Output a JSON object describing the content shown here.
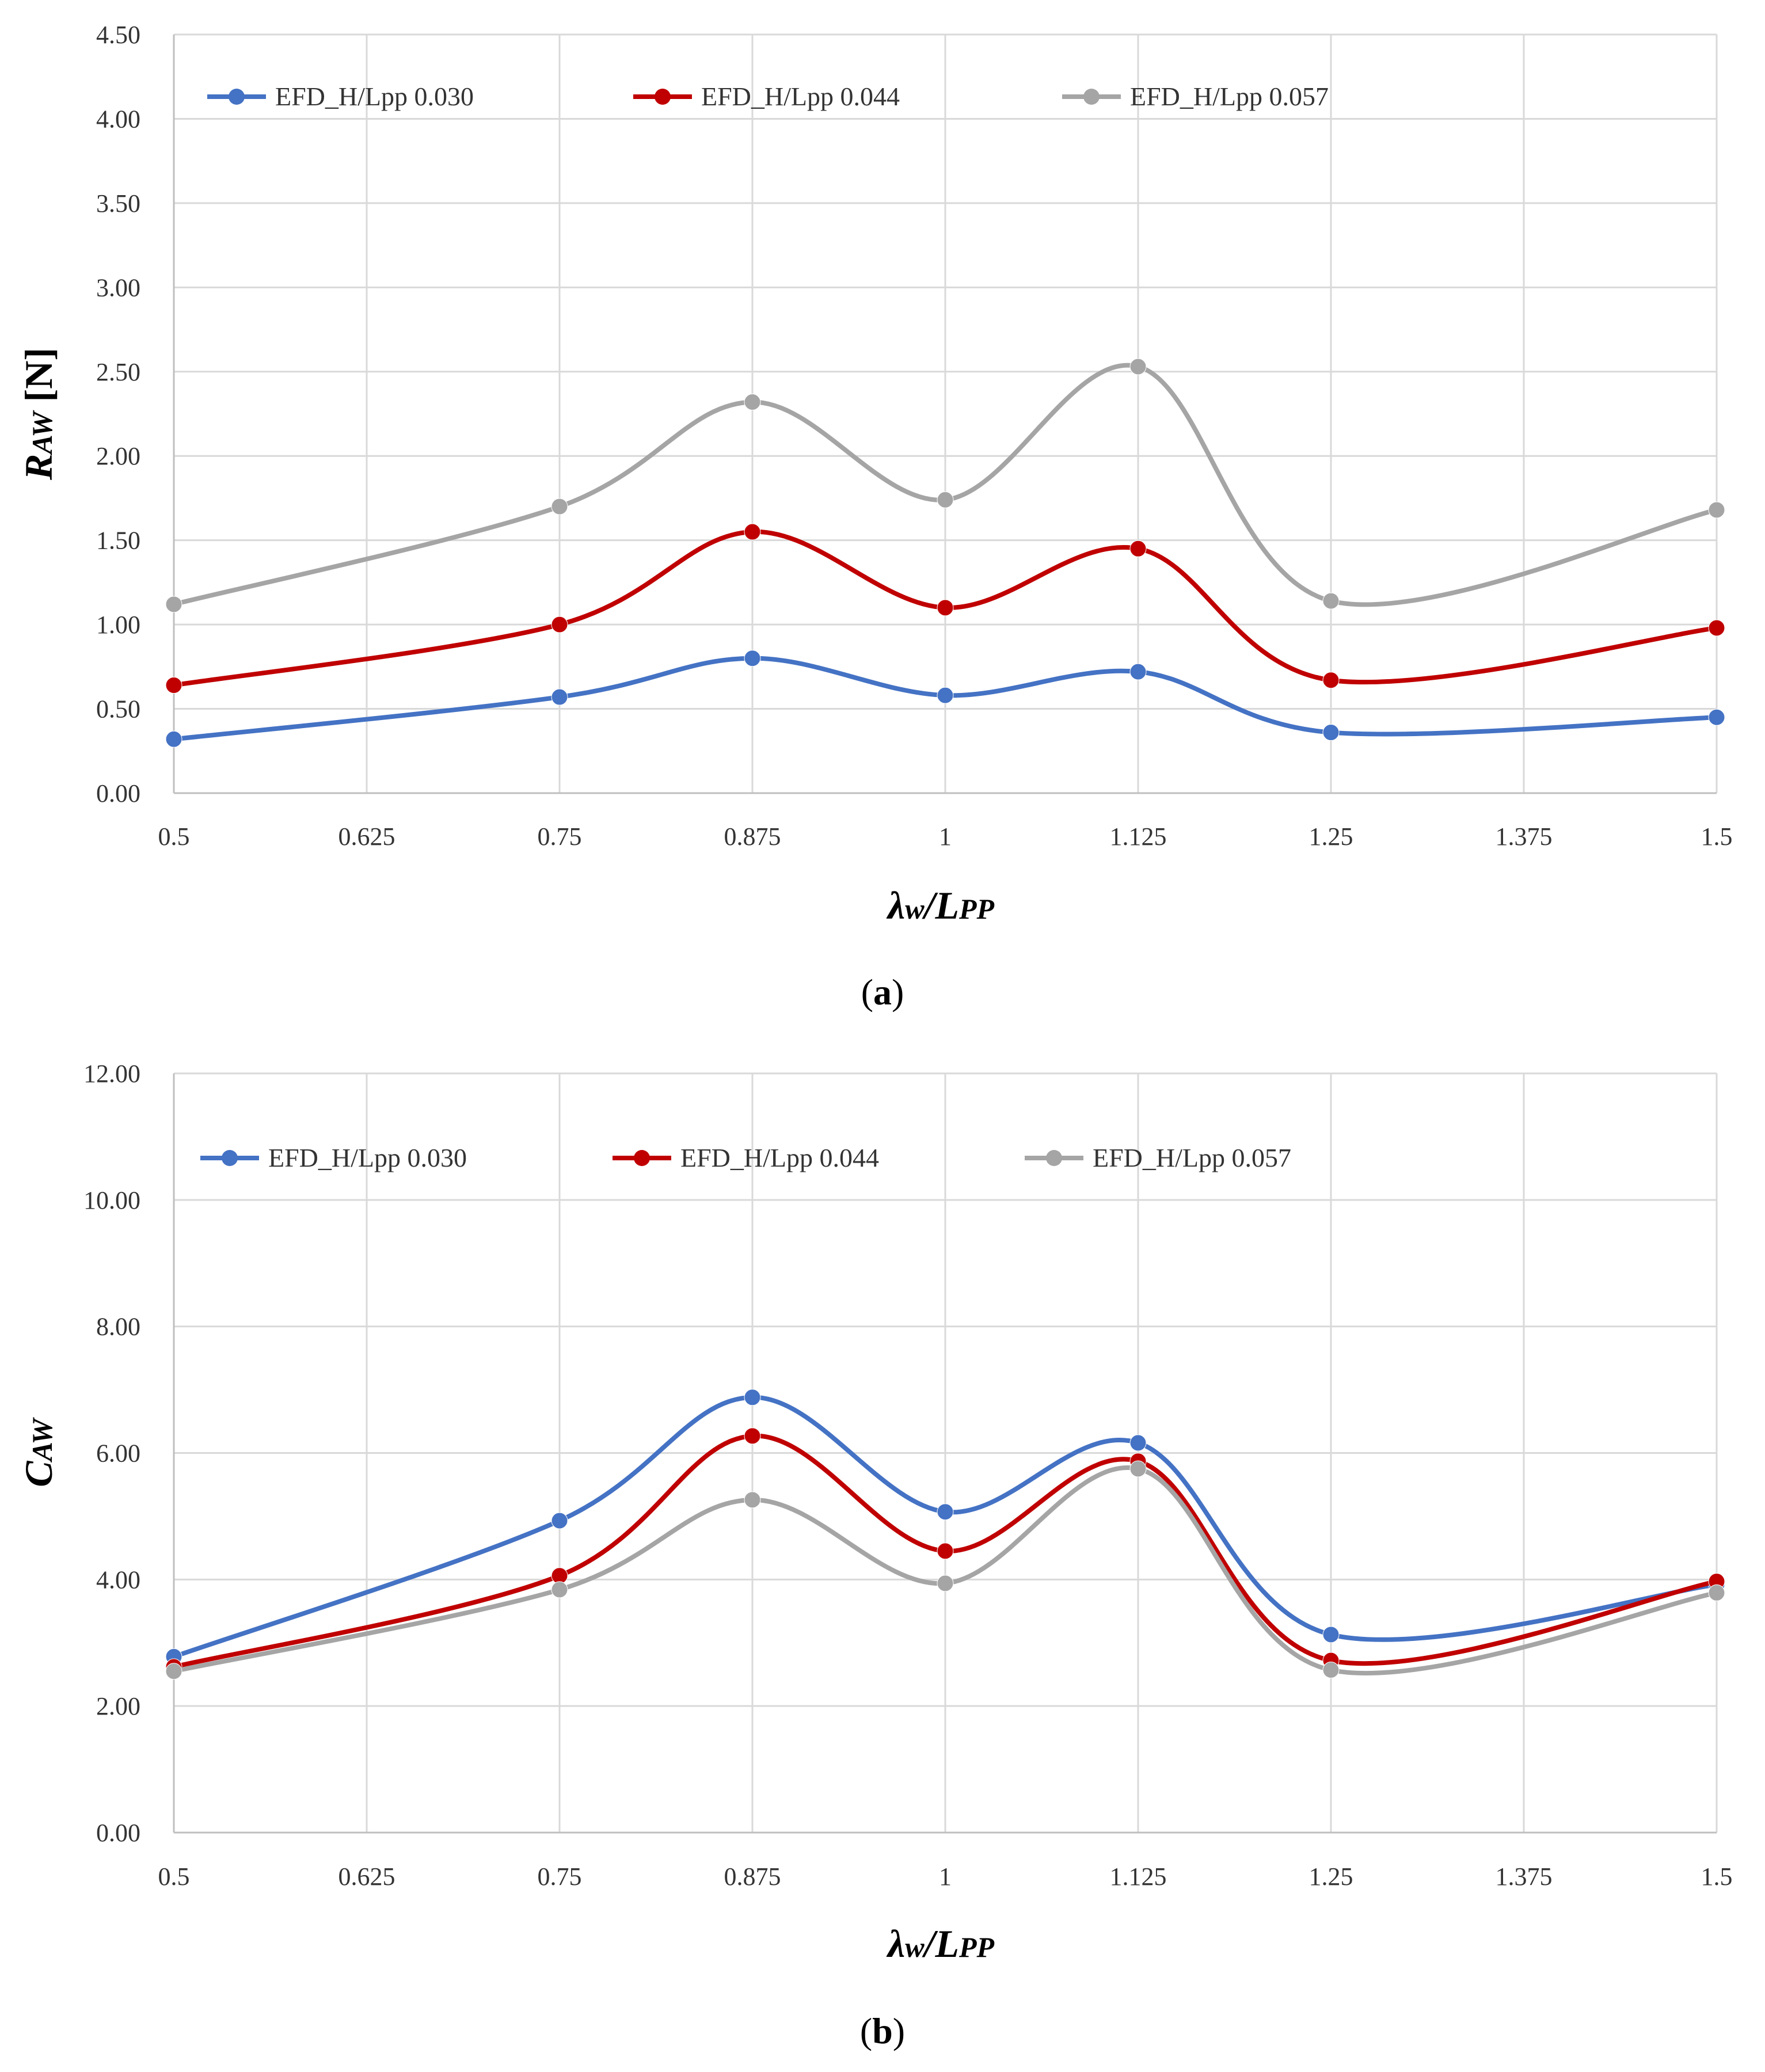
{
  "chart_data": [
    {
      "type": "line",
      "panel_label": "a",
      "ylabel_main": "R",
      "ylabel_sub": "AW",
      "ylabel_suffix": " [N]",
      "xlabel_main": "λ",
      "xlabel_sub": "w",
      "xlabel_mid": "/L",
      "xlabel_sub2": "PP",
      "xlim": [
        0.5,
        1.5
      ],
      "ylim": [
        0,
        4.5
      ],
      "x_ticks": [
        "0.5",
        "0.625",
        "0.75",
        "0.875",
        "1",
        "1.125",
        "1.25",
        "1.375",
        "1.5"
      ],
      "y_ticks": [
        "0.00",
        "0.50",
        "1.00",
        "1.50",
        "2.00",
        "2.50",
        "3.00",
        "3.50",
        "4.00",
        "4.50"
      ],
      "x": [
        0.5,
        0.75,
        0.875,
        1.0,
        1.125,
        1.25,
        1.5
      ],
      "grid": true,
      "smooth": true,
      "legend": "top",
      "series": [
        {
          "name": "EFD_H/Lpp 0.030",
          "color": "#4472C4",
          "values": [
            0.32,
            0.57,
            0.8,
            0.58,
            0.72,
            0.36,
            0.45
          ]
        },
        {
          "name": "EFD_H/Lpp 0.044",
          "color": "#C00000",
          "values": [
            0.64,
            1.0,
            1.55,
            1.1,
            1.45,
            0.67,
            0.98
          ]
        },
        {
          "name": "EFD_H/Lpp 0.057",
          "color": "#A5A5A5",
          "values": [
            1.12,
            1.7,
            2.32,
            1.74,
            2.53,
            1.14,
            1.68
          ]
        }
      ]
    },
    {
      "type": "line",
      "panel_label": "b",
      "ylabel_main": "C",
      "ylabel_sub": "AW",
      "ylabel_suffix": "",
      "xlabel_main": "λ",
      "xlabel_sub": "w",
      "xlabel_mid": "/L",
      "xlabel_sub2": "PP",
      "xlim": [
        0.5,
        1.5
      ],
      "ylim": [
        0,
        12
      ],
      "x_ticks": [
        "0.5",
        "0.625",
        "0.75",
        "0.875",
        "1",
        "1.125",
        "1.25",
        "1.375",
        "1.5"
      ],
      "y_ticks": [
        "0.00",
        "2.00",
        "4.00",
        "6.00",
        "8.00",
        "10.00",
        "12.00"
      ],
      "x": [
        0.5,
        0.75,
        0.875,
        1.0,
        1.125,
        1.25,
        1.5
      ],
      "grid": true,
      "smooth": true,
      "legend": "top",
      "series": [
        {
          "name": "EFD_H/Lpp 0.030",
          "color": "#4472C4",
          "values": [
            2.78,
            4.93,
            6.88,
            5.07,
            6.16,
            3.13,
            3.92
          ]
        },
        {
          "name": "EFD_H/Lpp 0.044",
          "color": "#C00000",
          "values": [
            2.62,
            4.06,
            6.27,
            4.45,
            5.87,
            2.72,
            3.97
          ]
        },
        {
          "name": "EFD_H/Lpp 0.057",
          "color": "#A5A5A5",
          "values": [
            2.55,
            3.84,
            5.26,
            3.94,
            5.75,
            2.57,
            3.79
          ]
        }
      ]
    }
  ]
}
